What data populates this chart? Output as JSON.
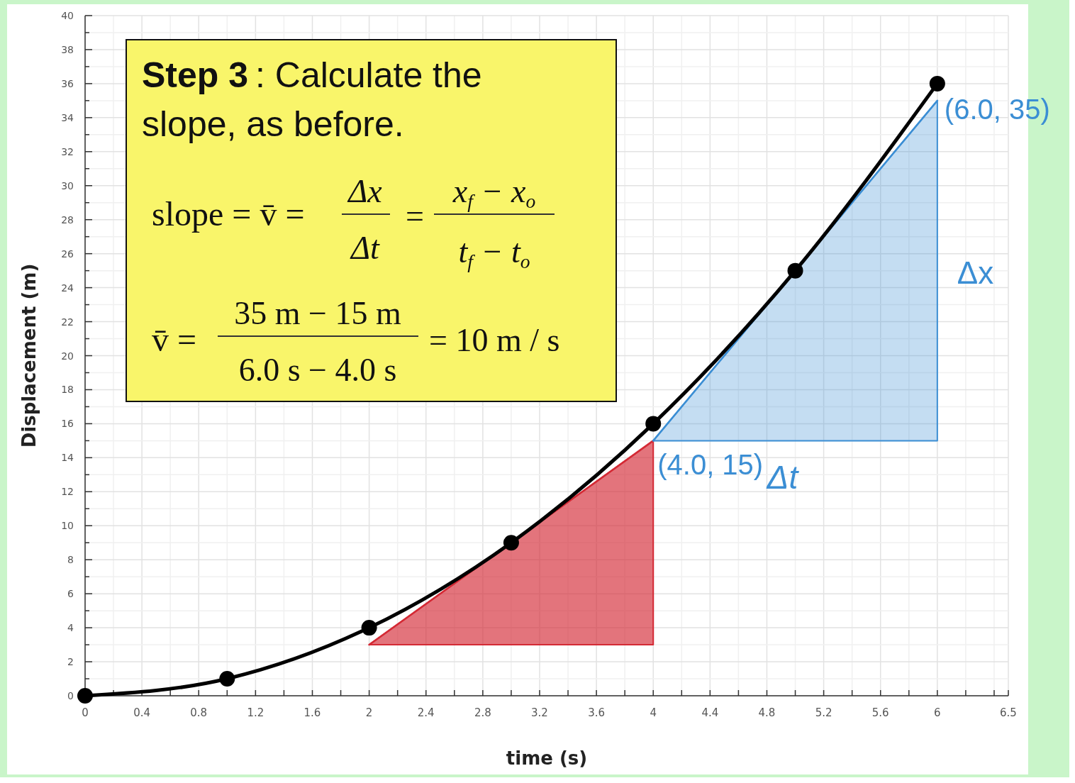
{
  "chart_data": {
    "type": "line",
    "xlabel": "time (s)",
    "ylabel": "Displacement (m)",
    "xlim": [
      0,
      6.5
    ],
    "ylim": [
      0,
      40
    ],
    "xticks": [
      0,
      {
        "value": 0.2,
        "label": null
      },
      0.4,
      {
        "value": 0.6,
        "label": null
      },
      0.8,
      {
        "value": 1,
        "label": null
      },
      1.2,
      {
        "value": 1.4,
        "label": null
      },
      1.6,
      {
        "value": 1.8,
        "label": null
      },
      2,
      {
        "value": 2.2,
        "label": null
      },
      2.4,
      {
        "value": 2.6,
        "label": null
      },
      2.8,
      {
        "value": 3,
        "label": null
      },
      3.2,
      {
        "value": 3.4,
        "label": null
      },
      3.6,
      {
        "value": 3.8,
        "label": null
      },
      4,
      {
        "value": 4.2,
        "label": null
      },
      4.4,
      {
        "value": 4.6,
        "label": null
      },
      4.8,
      {
        "value": 5,
        "label": null
      },
      5.2,
      {
        "value": 5.4,
        "label": null
      },
      5.6,
      {
        "value": 5.8,
        "label": null
      },
      6,
      {
        "value": 6.2,
        "label": null
      },
      {
        "value": 6.4,
        "label": null
      },
      6.5
    ],
    "yticks": [
      0,
      {
        "value": 1,
        "label": null
      },
      2,
      {
        "value": 3,
        "label": null
      },
      4,
      {
        "value": 5,
        "label": null
      },
      6,
      {
        "value": 7,
        "label": null
      },
      8,
      {
        "value": 9,
        "label": null
      },
      10,
      {
        "value": 11,
        "label": null
      },
      12,
      {
        "value": 13,
        "label": null
      },
      14,
      {
        "value": 15,
        "label": null
      },
      16,
      {
        "value": 17,
        "label": null
      },
      18,
      {
        "value": 19,
        "label": null
      },
      20,
      {
        "value": 21,
        "label": null
      },
      22,
      {
        "value": 23,
        "label": null
      },
      24,
      {
        "value": 25,
        "label": null
      },
      26,
      {
        "value": 27,
        "label": null
      },
      28,
      {
        "value": 29,
        "label": null
      },
      30,
      {
        "value": 31,
        "label": null
      },
      32,
      {
        "value": 33,
        "label": null
      },
      34,
      {
        "value": 35,
        "label": null
      },
      36,
      {
        "value": 37,
        "label": null
      },
      38,
      {
        "value": 39,
        "label": null
      },
      40
    ],
    "grid": true,
    "series": [
      {
        "color": "#000000",
        "marker": "circle",
        "x": [
          0,
          1,
          2,
          3,
          4,
          5,
          6
        ],
        "values": [
          0,
          1,
          4,
          9,
          16,
          25,
          36
        ]
      },
      {
        "color": "#d42a35",
        "marker": "none",
        "x": [
          2,
          4
        ],
        "values": [
          3,
          15
        ],
        "lower": [
          3,
          3
        ],
        "upper": [
          3,
          15
        ]
      },
      {
        "color": "#3b8ed4",
        "marker": "none",
        "x": [
          4,
          6
        ],
        "values": [
          15,
          35
        ],
        "lower": [
          15,
          15
        ],
        "upper": [
          15,
          35
        ]
      }
    ],
    "annotations": [
      "Step 3",
      ": Calculate the",
      "slope, as before.",
      "slope = v̄ =",
      "Δx",
      "Δt",
      "=",
      "x$_{f}$ − x$_{o}$",
      "t$_{f}$ − t$_{o}$",
      "v̄ =",
      "35 m − 15 m",
      "6.0 s − 4.0 s",
      "= 10 m / s",
      {
        "text": "(4.0, 15)",
        "x": 4,
        "y": 15
      },
      {
        "text": "(6.0, 35)",
        "x": 6,
        "y": 35
      },
      {
        "text": "Δx",
        "x": 6,
        "y": 25
      },
      {
        "text": "Δt",
        "x": 5,
        "y": 15
      }
    ]
  }
}
